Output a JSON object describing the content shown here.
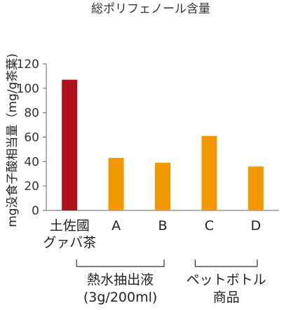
{
  "chart_data": {
    "type": "bar",
    "title": "総ポリフェノール含量",
    "ylabel": "mg没食子酸相当量（mg/g茶葉)",
    "xlabel": "",
    "ylim": [
      0,
      120
    ],
    "yticks": [
      0,
      20,
      40,
      60,
      80,
      100,
      120
    ],
    "categories": [
      "土佐國グァバ茶",
      "A",
      "B",
      "C",
      "D"
    ],
    "category_lines": [
      [
        "土佐國",
        "グァバ茶"
      ],
      [
        "A"
      ],
      [
        "B"
      ],
      [
        "C"
      ],
      [
        "D"
      ]
    ],
    "values": [
      107,
      43,
      39,
      61,
      36
    ],
    "bar_colors": [
      "#b0121b",
      "#f39800",
      "#f39800",
      "#f39800",
      "#f39800"
    ],
    "grid": false,
    "groups": [
      {
        "label_lines": [
          "熱水抽出液",
          "(3g/200ml)"
        ],
        "from": 0,
        "to": 2
      },
      {
        "label_lines": [
          "ペットボトル",
          "商品"
        ],
        "from": 3,
        "to": 4
      }
    ]
  }
}
